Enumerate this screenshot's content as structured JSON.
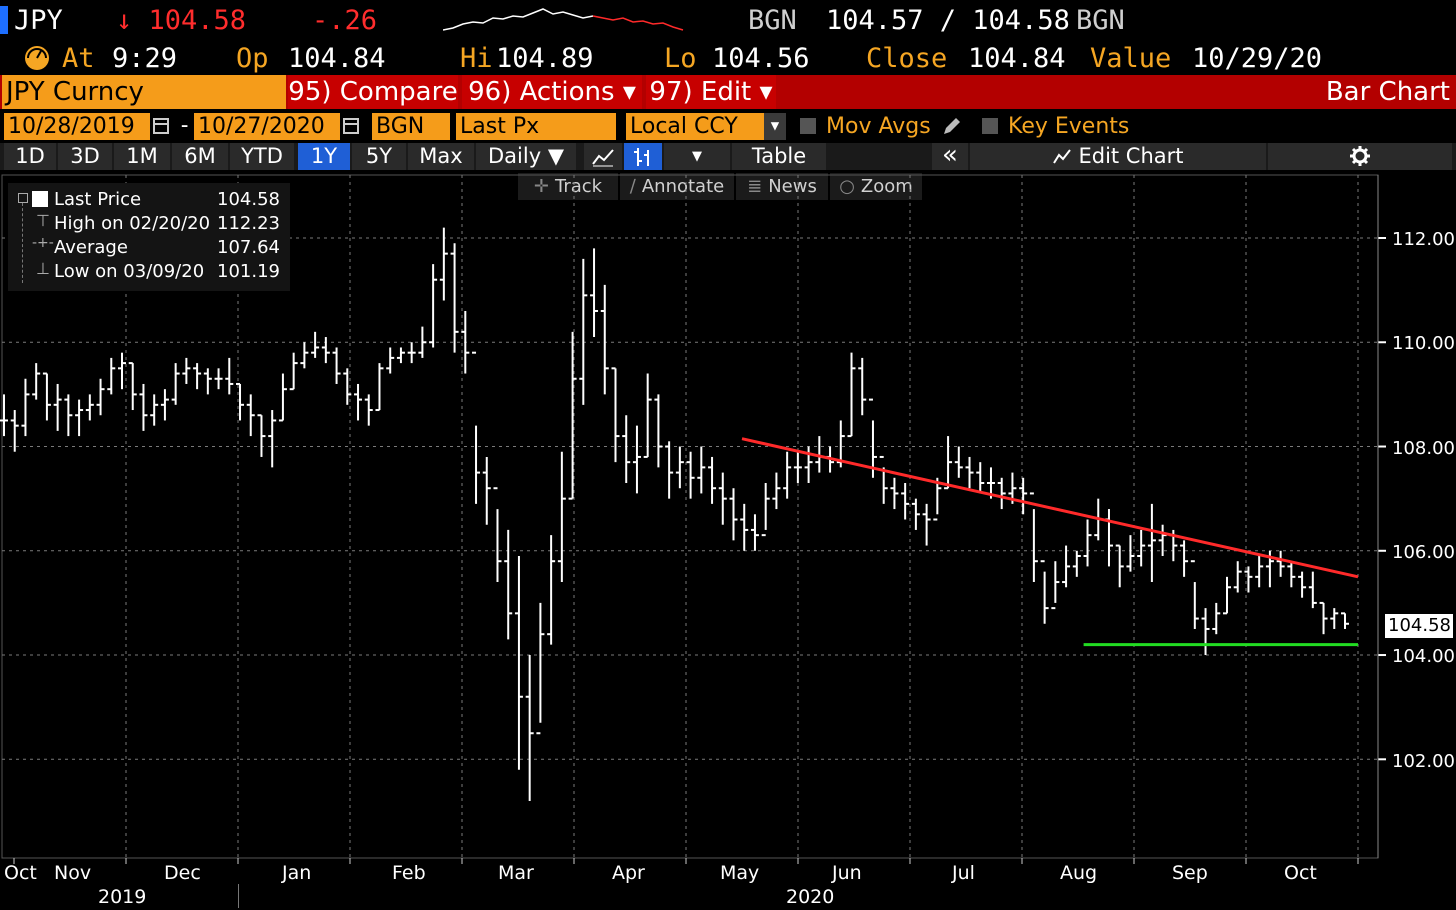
{
  "header": {
    "ticker": "JPY",
    "last": "↓ 104.58",
    "change": "-.26",
    "source1": "BGN",
    "bid_ask": "104.57 / 104.58",
    "source2": "BGN",
    "at_label": "At",
    "time": "9:29",
    "op_label": "Op",
    "open": "104.84",
    "hi_label": "Hi",
    "high": "104.89",
    "lo_label": "Lo",
    "low": "104.56",
    "close_label": "Close",
    "close": "104.84",
    "value_label": "Value",
    "value_date": "10/29/20"
  },
  "menubar": {
    "security": "JPY Curncy",
    "compare": "95) Compare",
    "actions": "96) Actions ▾",
    "edit": "97) Edit ▾",
    "chart_type": "Bar Chart"
  },
  "settings": {
    "start_date": "10/28/2019",
    "end_date": "10/27/2020",
    "source": "BGN",
    "field": "Last Px",
    "currency": "Local CCY",
    "mov_avgs": "Mov Avgs",
    "key_events": "Key Events"
  },
  "ranges": [
    "1D",
    "3D",
    "1M",
    "6M",
    "YTD",
    "1Y",
    "5Y",
    "Max"
  ],
  "selected_range": "1Y",
  "toolbar": {
    "periodicity": "Daily ▼",
    "table": "Table",
    "collapse": "«",
    "edit_chart": "Edit Chart"
  },
  "tools": [
    "Track",
    "Annotate",
    "News",
    "Zoom"
  ],
  "legend": [
    {
      "label": "Last Price",
      "value": "104.58"
    },
    {
      "label": "High on 02/20/20",
      "value": "112.23"
    },
    {
      "label": "Average",
      "value": "107.64"
    },
    {
      "label": "Low on 03/09/20",
      "value": "101.19"
    }
  ],
  "chart_data": {
    "type": "bar",
    "x_months": [
      "Oct",
      "Nov",
      "Dec",
      "Jan",
      "Feb",
      "Mar",
      "Apr",
      "May",
      "Jun",
      "Jul",
      "Aug",
      "Sep",
      "Oct"
    ],
    "x_years": [
      "2019",
      "2020"
    ],
    "y_ticks": [
      "112.00",
      "110.00",
      "108.00",
      "106.00",
      "104.00",
      "102.00"
    ],
    "ylim": [
      100.5,
      113.0
    ],
    "last_price_tag": "104.58",
    "colors": {
      "bars": "#ffffff",
      "resistance": "#ff2a2a",
      "support": "#22dd22",
      "grid": "#7a7a7a"
    },
    "resistance_line": {
      "start": {
        "month_index": 6.5,
        "price": 108.15
      },
      "end": {
        "month_index": 12.6,
        "price": 105.5
      }
    },
    "support_line": {
      "start": {
        "month_index": 9.55,
        "price": 104.2
      },
      "end": {
        "month_index": 12.6,
        "price": 104.2
      }
    },
    "bars": [
      [
        109.0,
        108.2,
        108.5
      ],
      [
        108.7,
        107.9,
        108.4
      ],
      [
        109.3,
        108.2,
        109.0
      ],
      [
        109.6,
        108.9,
        109.4
      ],
      [
        109.4,
        108.5,
        108.8
      ],
      [
        109.2,
        108.3,
        108.9
      ],
      [
        109.0,
        108.2,
        108.6
      ],
      [
        108.9,
        108.2,
        108.7
      ],
      [
        109.0,
        108.5,
        108.8
      ],
      [
        109.3,
        108.6,
        109.1
      ],
      [
        109.7,
        109.0,
        109.5
      ],
      [
        109.8,
        109.1,
        109.6
      ],
      [
        109.6,
        108.7,
        109.0
      ],
      [
        109.2,
        108.3,
        108.6
      ],
      [
        109.0,
        108.4,
        108.8
      ],
      [
        109.1,
        108.5,
        108.9
      ],
      [
        109.6,
        108.8,
        109.4
      ],
      [
        109.7,
        109.2,
        109.5
      ],
      [
        109.6,
        109.1,
        109.4
      ],
      [
        109.5,
        109.0,
        109.3
      ],
      [
        109.5,
        109.1,
        109.3
      ],
      [
        109.7,
        109.0,
        109.2
      ],
      [
        109.2,
        108.5,
        108.8
      ],
      [
        109.0,
        108.2,
        108.6
      ],
      [
        108.6,
        107.8,
        108.2
      ],
      [
        108.7,
        107.6,
        108.5
      ],
      [
        109.4,
        108.5,
        109.1
      ],
      [
        109.8,
        109.1,
        109.6
      ],
      [
        110.0,
        109.5,
        109.8
      ],
      [
        110.2,
        109.7,
        109.9
      ],
      [
        110.1,
        109.6,
        109.8
      ],
      [
        109.9,
        109.2,
        109.4
      ],
      [
        109.5,
        108.8,
        109.0
      ],
      [
        109.2,
        108.5,
        108.9
      ],
      [
        109.0,
        108.4,
        108.7
      ],
      [
        109.6,
        108.7,
        109.5
      ],
      [
        109.9,
        109.4,
        109.7
      ],
      [
        109.9,
        109.6,
        109.8
      ],
      [
        110.0,
        109.6,
        109.8
      ],
      [
        110.3,
        109.7,
        110.0
      ],
      [
        111.5,
        109.9,
        111.2
      ],
      [
        112.2,
        110.8,
        111.7
      ],
      [
        111.9,
        109.8,
        110.2
      ],
      [
        110.6,
        109.4,
        109.8
      ],
      [
        108.4,
        106.9,
        107.5
      ],
      [
        107.8,
        106.5,
        107.2
      ],
      [
        106.8,
        105.4,
        105.8
      ],
      [
        106.4,
        104.3,
        104.8
      ],
      [
        105.9,
        101.8,
        103.2
      ],
      [
        104.0,
        101.2,
        102.5
      ],
      [
        105.0,
        102.7,
        104.4
      ],
      [
        106.3,
        104.2,
        105.8
      ],
      [
        107.9,
        105.4,
        107.0
      ],
      [
        110.2,
        107.0,
        109.3
      ],
      [
        111.6,
        108.8,
        110.9
      ],
      [
        111.8,
        110.1,
        110.6
      ],
      [
        111.1,
        109.0,
        109.5
      ],
      [
        109.5,
        107.7,
        108.2
      ],
      [
        108.6,
        107.3,
        107.7
      ],
      [
        108.4,
        107.1,
        107.8
      ],
      [
        109.4,
        107.8,
        108.9
      ],
      [
        109.0,
        107.6,
        108.0
      ],
      [
        108.1,
        107.0,
        107.5
      ],
      [
        108.0,
        107.2,
        107.7
      ],
      [
        107.9,
        107.0,
        107.4
      ],
      [
        108.0,
        107.1,
        107.6
      ],
      [
        107.8,
        106.9,
        107.2
      ],
      [
        107.5,
        106.5,
        107.0
      ],
      [
        107.2,
        106.2,
        106.6
      ],
      [
        106.9,
        106.0,
        106.4
      ],
      [
        106.7,
        106.0,
        106.3
      ],
      [
        107.3,
        106.4,
        107.0
      ],
      [
        107.5,
        106.8,
        107.2
      ],
      [
        107.9,
        107.0,
        107.6
      ],
      [
        107.9,
        107.3,
        107.6
      ],
      [
        108.0,
        107.3,
        107.7
      ],
      [
        108.2,
        107.5,
        107.8
      ],
      [
        108.0,
        107.5,
        107.7
      ],
      [
        108.5,
        107.6,
        108.2
      ],
      [
        109.8,
        108.2,
        109.5
      ],
      [
        109.7,
        108.6,
        108.9
      ],
      [
        108.5,
        107.4,
        107.8
      ],
      [
        107.6,
        106.9,
        107.2
      ],
      [
        107.4,
        106.8,
        107.1
      ],
      [
        107.3,
        106.6,
        106.9
      ],
      [
        107.0,
        106.4,
        106.7
      ],
      [
        106.9,
        106.1,
        106.6
      ],
      [
        107.4,
        106.7,
        107.2
      ],
      [
        108.2,
        107.2,
        107.7
      ],
      [
        108.0,
        107.4,
        107.6
      ],
      [
        107.8,
        107.2,
        107.5
      ],
      [
        107.7,
        107.1,
        107.3
      ],
      [
        107.6,
        107.0,
        107.3
      ],
      [
        107.4,
        106.8,
        107.1
      ],
      [
        107.5,
        106.9,
        107.2
      ],
      [
        107.4,
        106.7,
        107.1
      ],
      [
        106.8,
        105.4,
        105.8
      ],
      [
        105.6,
        104.6,
        104.9
      ],
      [
        105.8,
        105.0,
        105.4
      ],
      [
        106.1,
        105.3,
        105.7
      ],
      [
        106.0,
        105.5,
        105.9
      ],
      [
        106.6,
        105.7,
        106.3
      ],
      [
        107.0,
        106.2,
        106.6
      ],
      [
        106.8,
        105.7,
        106.1
      ],
      [
        106.1,
        105.3,
        105.7
      ],
      [
        106.3,
        105.6,
        105.9
      ],
      [
        106.4,
        105.7,
        106.1
      ],
      [
        106.9,
        105.4,
        106.2
      ],
      [
        106.5,
        105.9,
        106.3
      ],
      [
        106.4,
        105.8,
        106.1
      ],
      [
        106.2,
        105.5,
        105.8
      ],
      [
        105.4,
        104.5,
        104.7
      ],
      [
        104.9,
        104.0,
        104.5
      ],
      [
        105.0,
        104.4,
        104.8
      ],
      [
        105.5,
        104.8,
        105.3
      ],
      [
        105.8,
        105.2,
        105.6
      ],
      [
        105.7,
        105.2,
        105.5
      ],
      [
        105.9,
        105.3,
        105.7
      ],
      [
        106.0,
        105.3,
        105.8
      ],
      [
        106.0,
        105.5,
        105.7
      ],
      [
        105.8,
        105.3,
        105.5
      ],
      [
        105.6,
        105.1,
        105.3
      ],
      [
        105.6,
        104.9,
        105.0
      ],
      [
        105.0,
        104.4,
        104.7
      ],
      [
        104.9,
        104.5,
        104.8
      ],
      [
        104.8,
        104.5,
        104.6
      ]
    ]
  }
}
